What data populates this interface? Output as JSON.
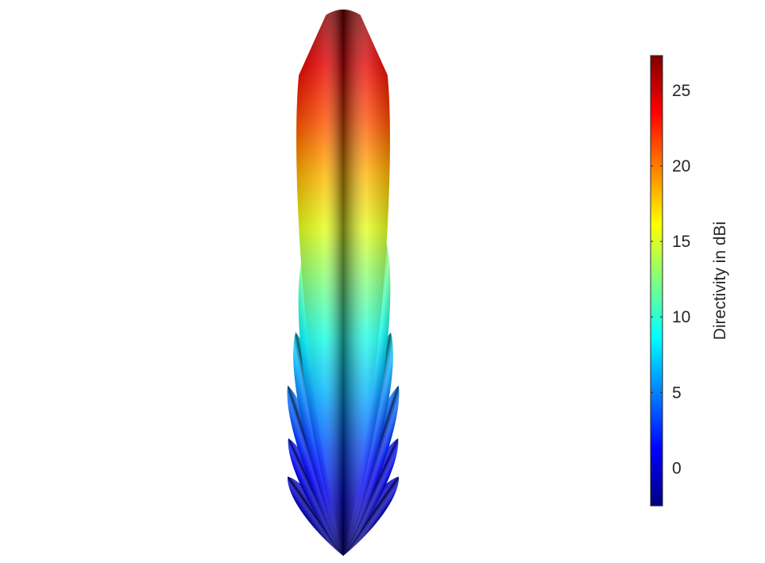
{
  "chart_data": {
    "type": "other",
    "description_kind": "3D antenna radiation pattern surface",
    "colorbar": {
      "label": "Directivity in dBi",
      "colormap": "jet",
      "range": [
        -2.5,
        27.3
      ],
      "ticks": [
        0,
        5,
        10,
        15,
        20,
        25
      ],
      "tick_labels": [
        "0",
        "5",
        "10",
        "15",
        "20",
        "25"
      ]
    },
    "lobes": [
      {
        "name": "main-lobe",
        "peak_directivity": 27.3,
        "tilt_deg": 0
      },
      {
        "name": "side-lobe-left-1",
        "peak_directivity": 13,
        "tilt_deg": -7
      },
      {
        "name": "side-lobe-right-1",
        "peak_directivity": 14,
        "tilt_deg": 7
      },
      {
        "name": "side-lobe-left-2",
        "peak_directivity": 8,
        "tilt_deg": -12
      },
      {
        "name": "side-lobe-right-2",
        "peak_directivity": 8,
        "tilt_deg": 12
      },
      {
        "name": "side-lobe-left-3",
        "peak_directivity": 5,
        "tilt_deg": -18
      },
      {
        "name": "side-lobe-right-3",
        "peak_directivity": 5,
        "tilt_deg": 18
      },
      {
        "name": "side-lobe-left-4",
        "peak_directivity": 2,
        "tilt_deg": -25
      },
      {
        "name": "side-lobe-right-4",
        "peak_directivity": 2,
        "tilt_deg": 25
      },
      {
        "name": "side-lobe-left-5",
        "peak_directivity": 0,
        "tilt_deg": -35
      },
      {
        "name": "side-lobe-right-5",
        "peak_directivity": 0,
        "tilt_deg": 35
      }
    ],
    "grid": false,
    "axes_visible": false
  }
}
